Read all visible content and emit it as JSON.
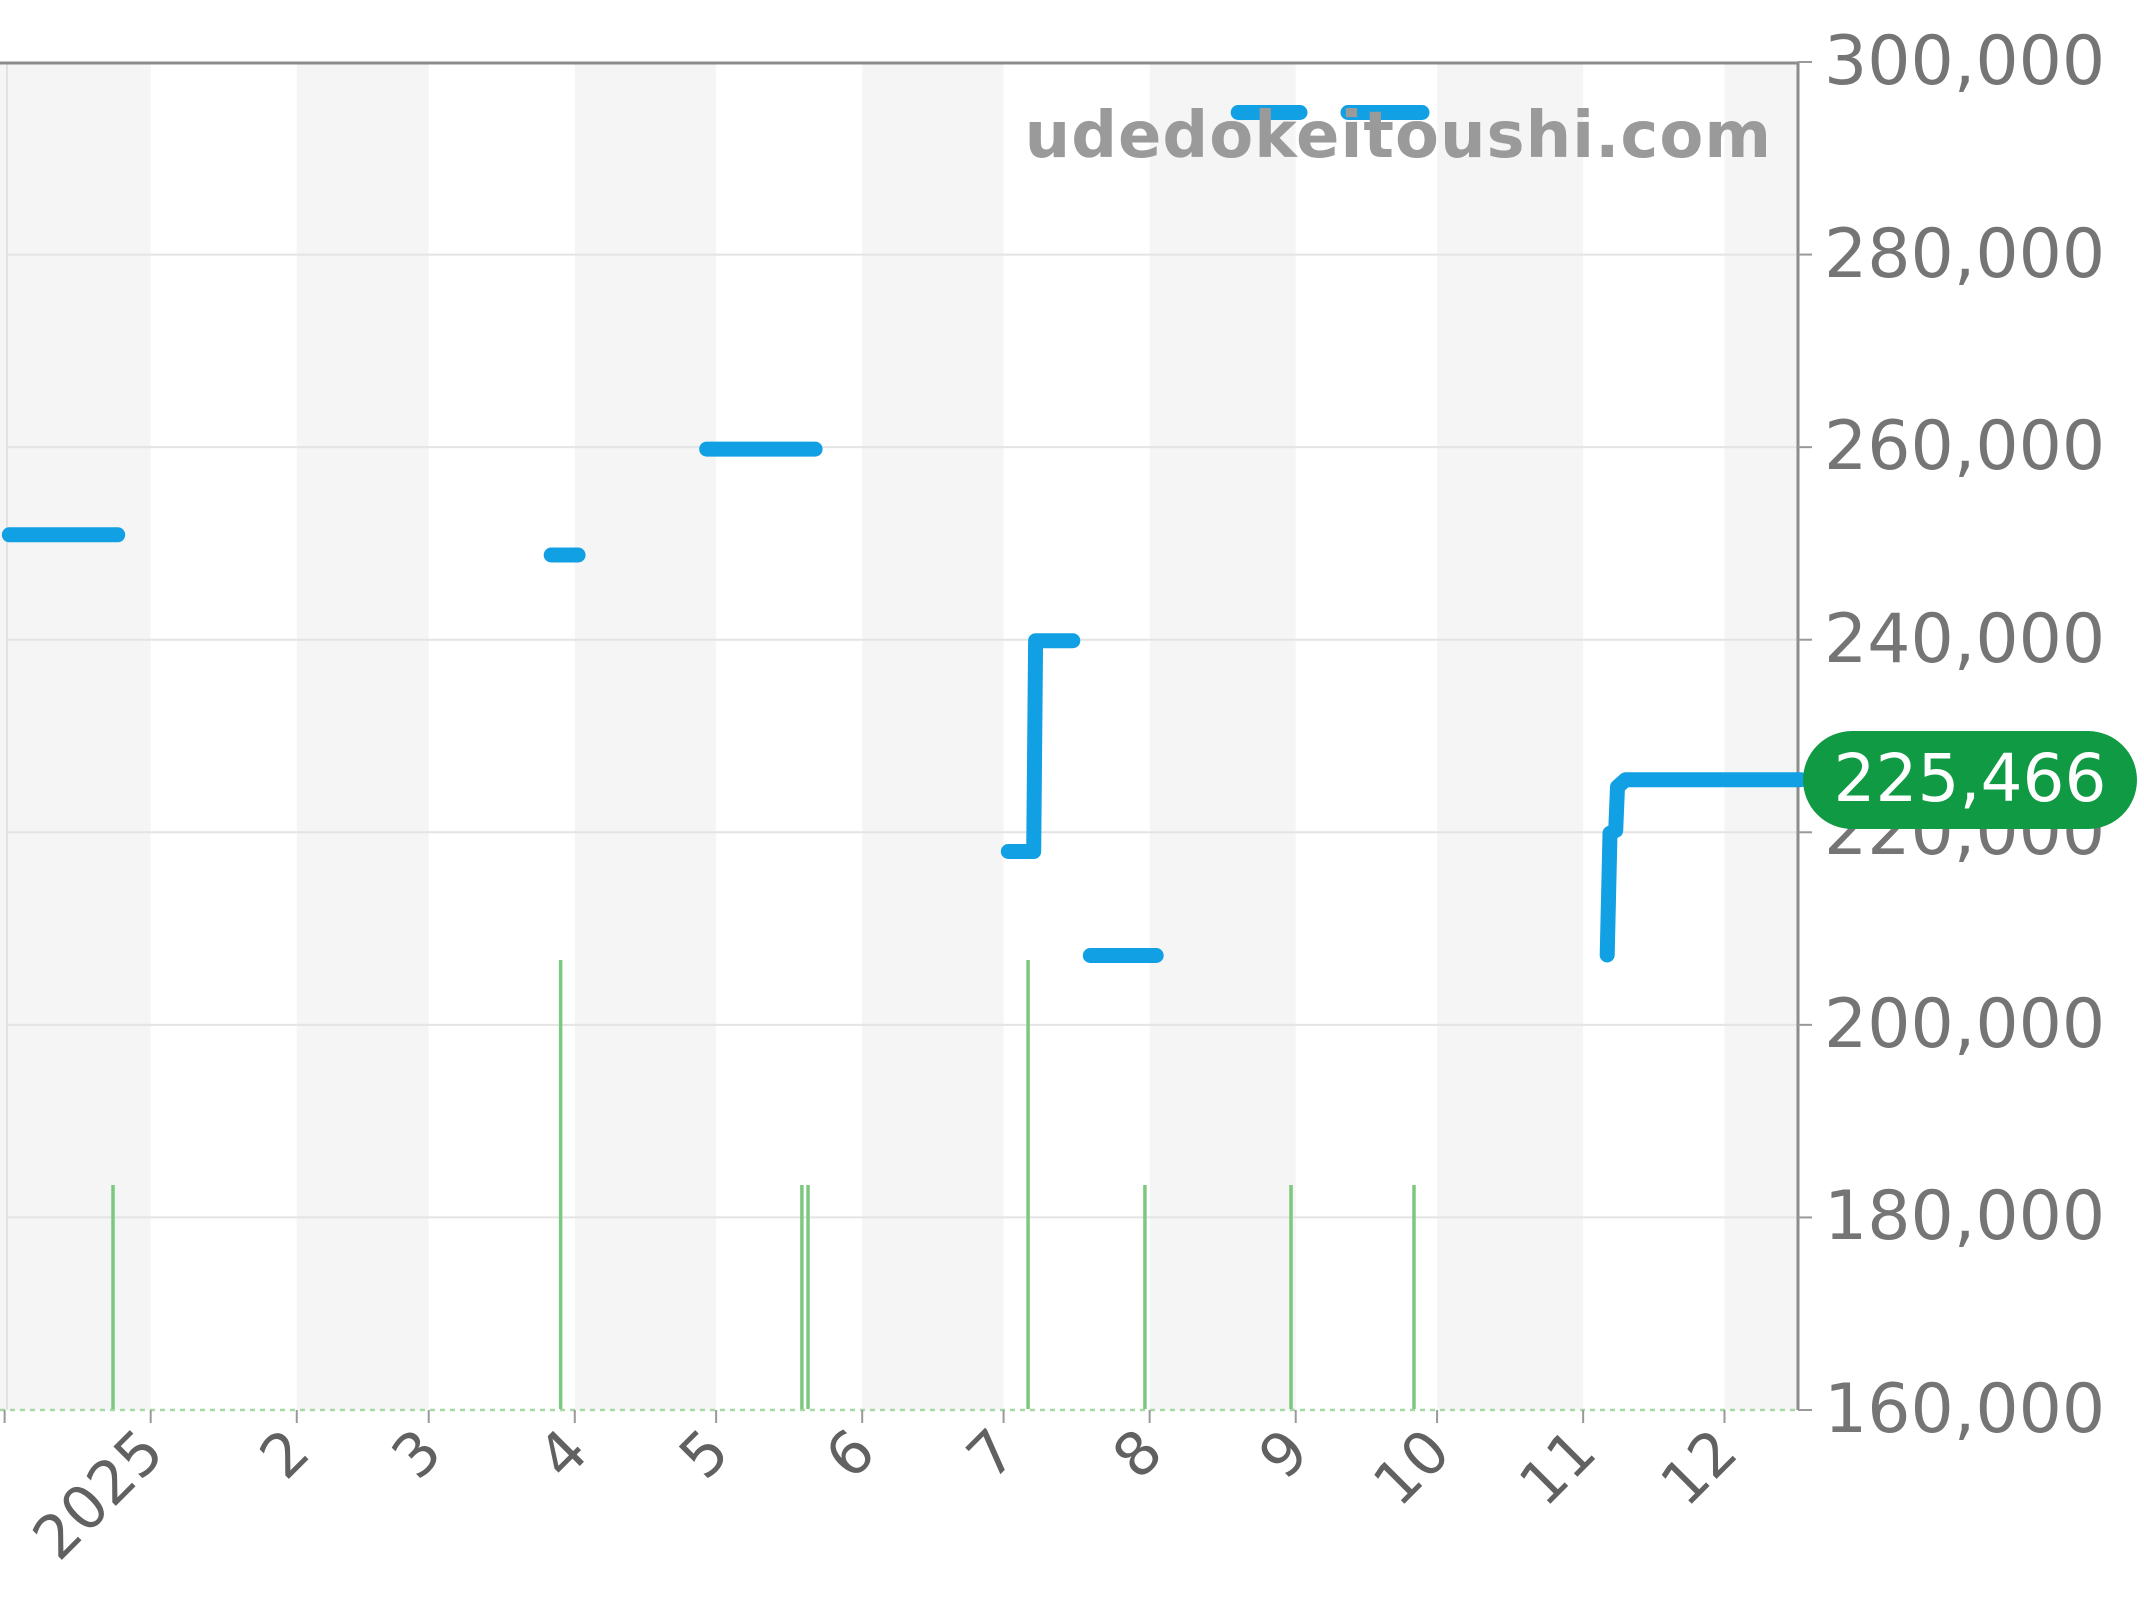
{
  "watermark": "udedokeitoushi.com",
  "price_badge": {
    "label": "225,466",
    "bg_color": "#109a44",
    "text_color": "#ffffff"
  },
  "colors": {
    "price_line": "#10a0e3",
    "volume_bar": "#7cc87f",
    "baseline_dotted": "#a6d9a6",
    "gridline": "#e4e4e4",
    "plot_border": "#8c8c8c",
    "left_border": "#dcdcdc",
    "tick": "#999999",
    "month_band": "#f5f5f5",
    "y_label": "#757575",
    "x_label": "#616161",
    "watermark": "#9a9a9a"
  },
  "chart_data": {
    "type": "line",
    "title": "",
    "xlabel": "",
    "ylabel": "",
    "watermark": "udedokeitoushi.com",
    "legend": "none",
    "grid": "horizontal",
    "y_axis": {
      "min": 160000,
      "max": 300000,
      "tick_interval": 20000,
      "tick_values": [
        300000,
        280000,
        260000,
        240000,
        220000,
        200000,
        180000,
        160000
      ],
      "tick_labels": [
        "300,000",
        "280,000",
        "260,000",
        "240,000",
        "220,000",
        "200,000",
        "180,000",
        "160,000"
      ],
      "side": "right"
    },
    "x_axis": {
      "unit": "days_since_2025-01-01",
      "domain_days": [
        -32,
        350.2
      ],
      "tick_days": [
        -31,
        0,
        31,
        59,
        90,
        120,
        151,
        181,
        212,
        243,
        273,
        304,
        334
      ],
      "label_days": [
        0,
        31,
        59,
        90,
        120,
        151,
        181,
        212,
        243,
        273,
        304,
        334
      ],
      "tick_labels": [
        "2025",
        "2",
        "3",
        "4",
        "5",
        "6",
        "7",
        "8",
        "9",
        "10",
        "11",
        "12"
      ],
      "label_rotation_deg": -45,
      "shaded_month_bands_days": [
        [
          -32,
          0
        ],
        [
          31,
          59
        ],
        [
          90,
          120
        ],
        [
          151,
          181
        ],
        [
          212,
          243
        ],
        [
          273,
          304
        ],
        [
          334,
          350.2
        ]
      ]
    },
    "series": [
      {
        "name": "price",
        "type": "step-line",
        "unit": "JPY",
        "current_value": 225466,
        "segments": [
          {
            "from_day": -30,
            "to_day": -7,
            "value": 250900
          },
          {
            "from_day": 85,
            "to_day": 90.7,
            "value": 248800
          },
          {
            "from_day": 118,
            "to_day": 141,
            "value": 259800
          },
          {
            "points": [
              [
                182,
                218000
              ],
              [
                187.4,
                218000
              ],
              [
                187.8,
                239900
              ],
              [
                195.7,
                239900
              ]
            ]
          },
          {
            "from_day": 199.4,
            "to_day": 213.4,
            "value": 207200
          },
          {
            "from_day": 230.8,
            "to_day": 243.9,
            "value": 294750
          },
          {
            "from_day": 254.1,
            "to_day": 269.8,
            "value": 294750
          },
          {
            "points": [
              [
                309.1,
                207250
              ],
              [
                309.7,
                219900
              ],
              [
                310.9,
                220200
              ],
              [
                311.3,
                224700
              ],
              [
                313,
                225466
              ],
              [
                350.2,
                225466
              ]
            ]
          }
        ]
      },
      {
        "name": "volume",
        "type": "bar",
        "bars": [
          {
            "day": -8,
            "units": 1
          },
          {
            "day": 87,
            "units": 2
          },
          {
            "day": 138.2,
            "units": 1
          },
          {
            "day": 139.5,
            "units": 1
          },
          {
            "day": 186.2,
            "units": 2
          },
          {
            "day": 211,
            "units": 1
          },
          {
            "day": 242,
            "units": 1
          },
          {
            "day": 268.1,
            "units": 1
          }
        ]
      }
    ]
  }
}
